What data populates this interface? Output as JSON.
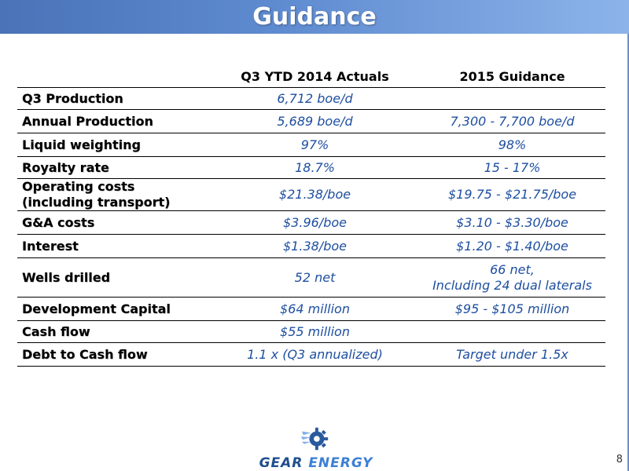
{
  "title": "Guidance",
  "table": {
    "headers": [
      "",
      "Q3 YTD 2014 Actuals",
      "2015 Guidance"
    ],
    "rows": [
      {
        "label": "Q3 Production",
        "actuals": [
          "6,712 boe/d"
        ],
        "guidance": [
          ""
        ]
      },
      {
        "label": "Annual Production",
        "actuals": [
          "5,689 boe/d"
        ],
        "guidance": [
          "7,300 - 7,700 boe/d"
        ]
      },
      {
        "label": "Liquid weighting",
        "actuals": [
          "97%"
        ],
        "guidance": [
          "98%"
        ]
      },
      {
        "label": "Royalty rate",
        "actuals": [
          "18.7%"
        ],
        "guidance": [
          "15 - 17%"
        ]
      },
      {
        "label_lines": [
          "Operating costs",
          "(including transport)"
        ],
        "actuals": [
          "$21.38/boe"
        ],
        "guidance": [
          "$19.75 - $21.75/boe"
        ]
      },
      {
        "label": "G&A costs",
        "actuals": [
          "$3.96/boe"
        ],
        "guidance": [
          "$3.10 - $3.30/boe"
        ]
      },
      {
        "label": "Interest",
        "actuals": [
          "$1.38/boe"
        ],
        "guidance": [
          "$1.20 - $1.40/boe"
        ]
      },
      {
        "label": "Wells drilled",
        "actuals": [
          "52 net"
        ],
        "guidance": [
          "66 net,",
          "Including 24 dual laterals"
        ]
      },
      {
        "label": "Development Capital",
        "actuals": [
          "$64 million"
        ],
        "guidance": [
          "$95 - $105 million"
        ]
      },
      {
        "label": "Cash flow",
        "actuals": [
          "$55 million"
        ],
        "guidance": [
          ""
        ]
      },
      {
        "label": "Debt to Cash flow",
        "actuals": [
          "1.1 x (Q3 annualized)"
        ],
        "guidance": [
          "Target under 1.5x"
        ]
      }
    ]
  },
  "logo": {
    "word1": "GEAR",
    "word2": "ENERGY",
    "icon": "gear-icon"
  },
  "page_number": "8",
  "colors": {
    "title_bar": "#5f8bd0",
    "value_text": "#1e4fa0",
    "logo_dark": "#1f4e8f",
    "logo_light": "#3d7fd6"
  }
}
